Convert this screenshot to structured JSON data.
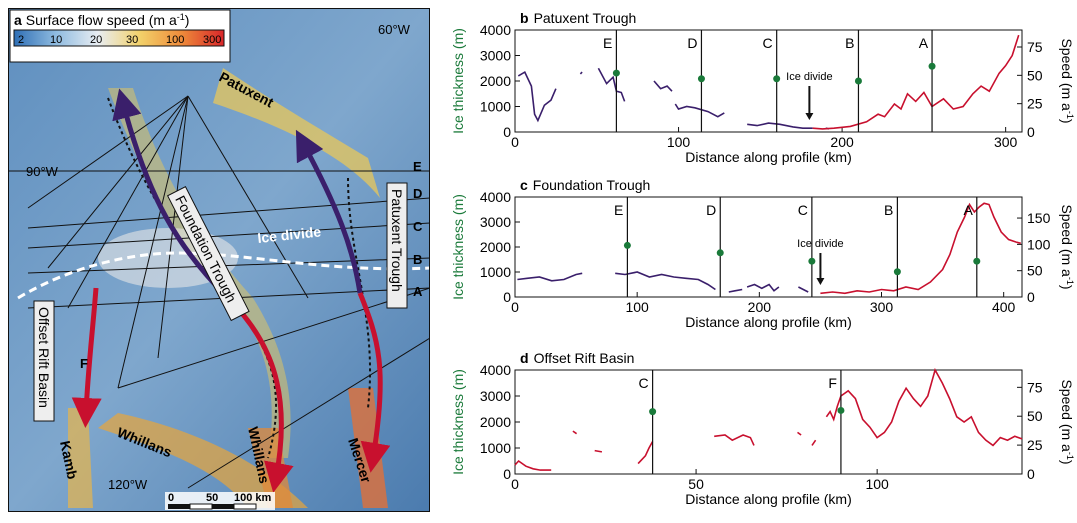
{
  "map": {
    "panel_letter": "a",
    "title": "Surface flow speed (m a",
    "title_sup": "-1",
    "title_end": ")",
    "colorbar_ticks": [
      "2",
      "10",
      "20",
      "30",
      "100",
      "300"
    ],
    "colorbar_colors": [
      "#2f6fb5",
      "#8fbbe0",
      "#e8edf2",
      "#f2d16a",
      "#ee8a3a",
      "#d8262a"
    ],
    "coord_labels": [
      "60°W",
      "90°W",
      "120°W"
    ],
    "profile_letters": [
      "E",
      "D",
      "C",
      "B",
      "A",
      "F"
    ],
    "ice_divide_label": "Ice divide",
    "trough_labels": [
      "Foundation Trough",
      "Patuxent Trough",
      "Offset Rift Basin"
    ],
    "glacier_labels": [
      "Patuxent",
      "Whillans",
      "Whillans",
      "Kamb",
      "Mercer"
    ],
    "scalebar_ticks": [
      "0",
      "50",
      "100 km"
    ],
    "colors": {
      "upstream_path": "#3a1f6b",
      "downstream_path": "#c8102e"
    }
  },
  "chart_data": [
    {
      "panel_letter": "b",
      "type": "line",
      "title": "Patuxent Trough",
      "xlabel": "Distance along profile (km)",
      "ylabel": "Ice thickness (m)",
      "y2label": "Speed (m a",
      "y2label_sup": "-1",
      "y2label_end": ")",
      "xlim": [
        0,
        310
      ],
      "ylim": [
        0,
        4000
      ],
      "y2lim": [
        0,
        90
      ],
      "xticks": [
        0,
        100,
        200,
        300
      ],
      "yticks": [
        0,
        1000,
        2000,
        3000,
        4000
      ],
      "y2ticks": [
        0,
        25,
        50,
        75
      ],
      "ice_divide_label": "Ice divide",
      "ice_divide_x": 180,
      "profile_markers": [
        {
          "label": "E",
          "x": 62,
          "speed": 52
        },
        {
          "label": "D",
          "x": 114,
          "speed": 47
        },
        {
          "label": "C",
          "x": 160,
          "speed": 47
        },
        {
          "label": "B",
          "x": 210,
          "speed": 45
        },
        {
          "label": "A",
          "x": 255,
          "speed": 58
        }
      ],
      "series": [
        {
          "color": "#3a1f6b",
          "segments": [
            [
              [
                2,
                2200
              ],
              [
                6,
                2350
              ],
              [
                10,
                1800
              ],
              [
                12,
                700
              ],
              [
                14,
                450
              ],
              [
                18,
                1050
              ],
              [
                22,
                1250
              ],
              [
                25,
                1700
              ]
            ],
            [
              [
                40,
                2280
              ],
              [
                41,
                2350
              ]
            ],
            [
              [
                51,
                2500
              ],
              [
                56,
                1900
              ],
              [
                60,
                2150
              ],
              [
                62,
                1600
              ],
              [
                65,
                1550
              ],
              [
                67,
                1200
              ]
            ],
            [
              [
                85,
                2000
              ],
              [
                89,
                1700
              ],
              [
                93,
                1800
              ],
              [
                96,
                1600
              ]
            ],
            [
              [
                98,
                1100
              ],
              [
                100,
                900
              ],
              [
                105,
                1000
              ],
              [
                110,
                950
              ],
              [
                118,
                800
              ],
              [
                124,
                600
              ],
              [
                128,
                750
              ]
            ],
            [
              [
                142,
                300
              ],
              [
                148,
                250
              ],
              [
                155,
                350
              ],
              [
                162,
                300
              ],
              [
                170,
                200
              ],
              [
                176,
                150
              ],
              [
                182,
                150
              ]
            ],
            [
              [
                190,
                150
              ],
              [
                192,
                120
              ]
            ]
          ]
        },
        {
          "color": "#c8102e",
          "segments": [
            [
              [
                182,
                150
              ],
              [
                188,
                120
              ],
              [
                195,
                150
              ],
              [
                205,
                220
              ],
              [
                215,
                400
              ],
              [
                222,
                700
              ],
              [
                226,
                600
              ],
              [
                232,
                1100
              ],
              [
                236,
                900
              ],
              [
                240,
                1500
              ],
              [
                245,
                1200
              ],
              [
                250,
                1550
              ],
              [
                255,
                1000
              ],
              [
                262,
                1300
              ],
              [
                268,
                900
              ],
              [
                274,
                1000
              ],
              [
                280,
                1500
              ],
              [
                285,
                1800
              ],
              [
                290,
                1600
              ],
              [
                296,
                2300
              ],
              [
                300,
                2600
              ],
              [
                304,
                3000
              ],
              [
                308,
                3800
              ]
            ]
          ]
        }
      ]
    },
    {
      "panel_letter": "c",
      "type": "line",
      "title": "Foundation Trough",
      "xlabel": "Distance along profile (km)",
      "ylabel": "Ice thickness (m)",
      "y2label": "Speed (m a",
      "y2label_sup": "-1",
      "y2label_end": ")",
      "xlim": [
        0,
        415
      ],
      "ylim": [
        0,
        4000
      ],
      "y2lim": [
        0,
        190
      ],
      "xticks": [
        0,
        100,
        200,
        300,
        400
      ],
      "yticks": [
        0,
        1000,
        2000,
        3000,
        4000
      ],
      "y2ticks": [
        0,
        50,
        100,
        150
      ],
      "ice_divide_label": "Ice divide",
      "ice_divide_x": 250,
      "profile_markers": [
        {
          "label": "E",
          "x": 92,
          "speed": 98
        },
        {
          "label": "D",
          "x": 168,
          "speed": 84
        },
        {
          "label": "C",
          "x": 243,
          "speed": 68
        },
        {
          "label": "B",
          "x": 313,
          "speed": 48
        },
        {
          "label": "A",
          "x": 378,
          "speed": 68
        }
      ],
      "series": [
        {
          "color": "#3a1f6b",
          "segments": [
            [
              [
                2,
                700
              ],
              [
                10,
                750
              ],
              [
                20,
                800
              ],
              [
                30,
                650
              ],
              [
                40,
                700
              ],
              [
                50,
                900
              ],
              [
                55,
                950
              ]
            ],
            [
              [
                82,
                950
              ],
              [
                90,
                900
              ],
              [
                100,
                1000
              ],
              [
                110,
                800
              ],
              [
                120,
                900
              ],
              [
                130,
                800
              ],
              [
                140,
                750
              ],
              [
                150,
                700
              ],
              [
                158,
                500
              ],
              [
                164,
                300
              ]
            ],
            [
              [
                175,
                200
              ],
              [
                180,
                250
              ],
              [
                186,
                300
              ]
            ],
            [
              [
                190,
                400
              ],
              [
                196,
                500
              ],
              [
                202,
                350
              ],
              [
                208,
                500
              ],
              [
                212,
                250
              ],
              [
                216,
                400
              ]
            ],
            [
              [
                232,
                400
              ],
              [
                236,
                300
              ],
              [
                240,
                200
              ]
            ]
          ]
        },
        {
          "color": "#c8102e",
          "segments": [
            [
              [
                250,
                150
              ],
              [
                260,
                200
              ],
              [
                270,
                150
              ],
              [
                280,
                250
              ],
              [
                290,
                200
              ],
              [
                300,
                300
              ],
              [
                310,
                250
              ],
              [
                320,
                400
              ],
              [
                330,
                300
              ],
              [
                340,
                600
              ],
              [
                350,
                1100
              ],
              [
                356,
                1700
              ],
              [
                362,
                2600
              ],
              [
                368,
                3200
              ],
              [
                372,
                3700
              ],
              [
                376,
                3400
              ],
              [
                380,
                3600
              ],
              [
                384,
                3750
              ],
              [
                388,
                3700
              ],
              [
                392,
                3200
              ],
              [
                398,
                2600
              ],
              [
                404,
                2300
              ],
              [
                410,
                2200
              ],
              [
                414,
                2150
              ]
            ]
          ]
        }
      ]
    },
    {
      "panel_letter": "d",
      "type": "line",
      "title": "Offset Rift Basin",
      "xlabel": "Distance along profile (km)",
      "ylabel": "Ice thickness (m)",
      "y2label": "Speed (m a",
      "y2label_sup": "-1",
      "y2label_end": ")",
      "xlim": [
        0,
        140
      ],
      "ylim": [
        0,
        4000
      ],
      "y2lim": [
        0,
        90
      ],
      "xticks": [
        0,
        50,
        100
      ],
      "yticks": [
        0,
        1000,
        2000,
        3000,
        4000
      ],
      "y2ticks": [
        0,
        25,
        50,
        75
      ],
      "profile_markers": [
        {
          "label": "C",
          "x": 38,
          "speed": 54
        },
        {
          "label": "F",
          "x": 90,
          "speed": 55
        }
      ],
      "series": [
        {
          "color": "#c8102e",
          "segments": [
            [
              [
                0,
                350
              ],
              [
                1,
                500
              ],
              [
                3,
                300
              ],
              [
                5,
                200
              ],
              [
                7,
                150
              ],
              [
                10,
                150
              ]
            ],
            [
              [
                16,
                1650
              ],
              [
                17,
                1550
              ]
            ],
            [
              [
                22,
                900
              ],
              [
                24,
                850
              ]
            ],
            [
              [
                34,
                400
              ],
              [
                36,
                700
              ],
              [
                37,
                1000
              ],
              [
                38,
                1250
              ]
            ],
            [
              [
                55,
                1450
              ],
              [
                58,
                1500
              ],
              [
                60,
                1300
              ],
              [
                63,
                1500
              ],
              [
                65,
                1400
              ],
              [
                66,
                1100
              ]
            ],
            [
              [
                78,
                1600
              ],
              [
                79,
                1500
              ]
            ],
            [
              [
                82,
                1100
              ],
              [
                83,
                1300
              ]
            ],
            [
              [
                86,
                2200
              ],
              [
                87,
                2400
              ],
              [
                88,
                2100
              ],
              [
                89,
                2600
              ],
              [
                90,
                3000
              ],
              [
                92,
                3200
              ],
              [
                94,
                2900
              ],
              [
                96,
                2100
              ],
              [
                98,
                1800
              ],
              [
                100,
                1400
              ],
              [
                102,
                1600
              ],
              [
                104,
                2000
              ],
              [
                106,
                2800
              ],
              [
                108,
                3300
              ],
              [
                110,
                2900
              ],
              [
                112,
                2600
              ],
              [
                114,
                3000
              ],
              [
                116,
                4000
              ],
              [
                118,
                3500
              ],
              [
                120,
                2900
              ],
              [
                122,
                2200
              ],
              [
                124,
                2000
              ],
              [
                126,
                2200
              ],
              [
                128,
                1600
              ],
              [
                130,
                1300
              ],
              [
                132,
                1100
              ],
              [
                134,
                1400
              ],
              [
                136,
                1300
              ],
              [
                138,
                1450
              ],
              [
                140,
                1350
              ]
            ]
          ]
        }
      ]
    }
  ]
}
